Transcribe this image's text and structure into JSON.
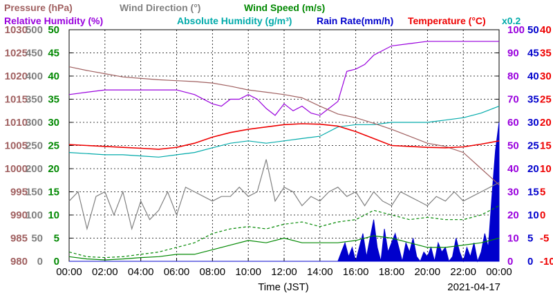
{
  "chart_data": {
    "type": "line",
    "date_label": "2021-04-17",
    "xlabel": "Time (JST)",
    "x_ticks": [
      "00:00",
      "02:00",
      "04:00",
      "06:00",
      "08:00",
      "10:00",
      "12:00",
      "14:00",
      "16:00",
      "18:00",
      "20:00",
      "22:00",
      "00:00"
    ],
    "x_range_hours": [
      0,
      24
    ],
    "grid": true,
    "legend_row1": [
      {
        "text": "Pressure (hPa)",
        "color": "#a06060"
      },
      {
        "text": "Wind Direction (°)",
        "color": "#808080"
      },
      {
        "text": "Wind Speed (m/s)",
        "color": "#008800"
      }
    ],
    "legend_row2": [
      {
        "text": "Relative Humidity (%)",
        "color": "#9900dd"
      },
      {
        "text": "Absolute Humidity (g/m³)",
        "color": "#00aaaa"
      },
      {
        "text": "Rain Rate(mm/h)",
        "color": "#0000cc"
      },
      {
        "text": "Temperature (°C)",
        "color": "#ee0000"
      }
    ],
    "rain_scale_note": "x0.2",
    "axes": {
      "pressure": {
        "ticks": [
          "980",
          "985",
          "990",
          "995",
          "1000",
          "1005",
          "1010",
          "1015",
          "1020",
          "1025",
          "1030"
        ],
        "range": [
          980,
          1030
        ],
        "color": "#a06060"
      },
      "wind_direction": {
        "ticks": [
          "0",
          "50",
          "100",
          "150",
          "200",
          "250",
          "300",
          "350",
          "400",
          "450",
          "500"
        ],
        "range": [
          0,
          500
        ],
        "color": "#808080"
      },
      "wind_speed": {
        "ticks": [
          "0",
          "5",
          "10",
          "15",
          "20",
          "25",
          "30",
          "35",
          "40",
          "45",
          "50"
        ],
        "range": [
          0,
          50
        ],
        "color": "#008800"
      },
      "humidity": {
        "ticks": [
          "0",
          "10",
          "20",
          "30",
          "40",
          "50",
          "60",
          "70",
          "80",
          "90",
          "100"
        ],
        "range": [
          0,
          100
        ],
        "color": "#9900dd"
      },
      "rain_rate": {
        "ticks": [
          "0",
          "5",
          "10",
          "15",
          "20",
          "25",
          "30",
          "35",
          "40",
          "45",
          "50"
        ],
        "range": [
          0,
          50
        ],
        "color": "#0000cc"
      },
      "temperature": {
        "ticks": [
          "-10",
          "-5",
          "0",
          "5",
          "10",
          "15",
          "20",
          "25",
          "30",
          "35",
          "40"
        ],
        "range": [
          -10,
          40
        ],
        "color": "#ee0000"
      }
    },
    "series": [
      {
        "name": "Pressure",
        "axis": "pressure",
        "color": "#a06060",
        "x": [
          0,
          1,
          2,
          3,
          4,
          5,
          6,
          7,
          8,
          9,
          10,
          11,
          12,
          13,
          14,
          15,
          16,
          17,
          18,
          19,
          20,
          21,
          22,
          23,
          24
        ],
        "y": [
          1022,
          1021.2,
          1020.5,
          1019.8,
          1019.5,
          1019.2,
          1019,
          1018.8,
          1018.5,
          1017.8,
          1017,
          1016.5,
          1016,
          1015.3,
          1013.5,
          1011.8,
          1011,
          1009.8,
          1008.5,
          1007,
          1005.5,
          1004.8,
          1003.5,
          1000,
          996.5
        ]
      },
      {
        "name": "Wind Direction",
        "axis": "wind_direction",
        "color": "#808080",
        "x": [
          0,
          0.5,
          1,
          1.5,
          2,
          2.5,
          3,
          3.5,
          4,
          4.5,
          5,
          5.5,
          6,
          6.5,
          7,
          7.5,
          8,
          8.5,
          9,
          9.5,
          10,
          10.5,
          11,
          11.5,
          12,
          12.5,
          13,
          13.5,
          14,
          14.5,
          15,
          15.5,
          16,
          16.5,
          17,
          17.5,
          18,
          18.5,
          19,
          19.5,
          20,
          20.5,
          21,
          21.5,
          22,
          22.5,
          23,
          23.5,
          24
        ],
        "y": [
          130,
          150,
          70,
          140,
          150,
          100,
          150,
          70,
          130,
          90,
          110,
          150,
          100,
          160,
          150,
          140,
          130,
          140,
          140,
          160,
          140,
          150,
          220,
          130,
          160,
          150,
          120,
          140,
          130,
          150,
          160,
          140,
          150,
          120,
          150,
          130,
          120,
          150,
          140,
          130,
          120,
          140,
          130,
          150,
          130,
          140,
          150,
          160,
          170
        ]
      },
      {
        "name": "Wind Speed",
        "axis": "wind_speed",
        "color": "#008800",
        "x": [
          0,
          1,
          2,
          3,
          4,
          5,
          6,
          7,
          8,
          9,
          10,
          11,
          12,
          13,
          14,
          15,
          16,
          17,
          18,
          19,
          20,
          21,
          22,
          23,
          24
        ],
        "y": [
          1,
          0.5,
          0.3,
          0.5,
          0.8,
          1,
          1.5,
          1.5,
          2.5,
          3.5,
          4.5,
          4,
          5,
          4,
          4,
          4,
          4.5,
          5.5,
          5,
          4,
          3,
          3,
          3.5,
          4,
          5
        ]
      },
      {
        "name": "Wind Speed Gust",
        "axis": "wind_speed",
        "color": "#008800",
        "dashed": true,
        "x": [
          0,
          1,
          2,
          3,
          4,
          5,
          6,
          7,
          8,
          9,
          10,
          11,
          12,
          13,
          14,
          15,
          16,
          17,
          18,
          19,
          20,
          21,
          22,
          23,
          24
        ],
        "y": [
          2,
          1,
          0.8,
          1,
          1.5,
          2,
          3,
          4,
          6,
          7,
          7.5,
          7,
          8,
          8.5,
          7.5,
          8.5,
          9,
          11,
          10,
          9,
          9.5,
          9,
          9,
          10,
          12
        ]
      },
      {
        "name": "Relative Humidity",
        "axis": "humidity",
        "color": "#9900dd",
        "x": [
          0,
          1,
          2,
          3,
          4,
          5,
          6,
          7,
          8,
          8.5,
          9,
          9.5,
          10,
          10.5,
          11,
          11.5,
          12,
          12.5,
          13,
          13.5,
          14,
          14.5,
          15,
          15.5,
          16,
          16.5,
          17,
          17.5,
          18,
          19,
          20,
          21,
          22,
          23,
          24
        ],
        "y": [
          72,
          73,
          74,
          74,
          74,
          74,
          74,
          72,
          68,
          67,
          70,
          70,
          72,
          70,
          66,
          63,
          68,
          65,
          67,
          64,
          63,
          66,
          69,
          82,
          83,
          85,
          89,
          91,
          93,
          94,
          95,
          95,
          95,
          95,
          95
        ]
      },
      {
        "name": "Absolute Humidity",
        "axis": "humidity",
        "color": "#00aaaa",
        "x": [
          0,
          1,
          2,
          3,
          4,
          5,
          6,
          7,
          8,
          9,
          10,
          11,
          12,
          13,
          14,
          15,
          16,
          17,
          18,
          19,
          20,
          21,
          22,
          23,
          24
        ],
        "y": [
          47,
          46.5,
          46,
          46,
          45.5,
          45,
          46,
          47,
          49,
          51,
          52,
          51,
          52,
          53,
          54,
          58,
          59,
          59,
          60,
          60,
          60,
          61,
          62,
          64,
          67
        ]
      },
      {
        "name": "Temperature",
        "axis": "temperature",
        "color": "#ee0000",
        "x": [
          0,
          1,
          2,
          3,
          4,
          5,
          6,
          7,
          8,
          9,
          10,
          11,
          12,
          13,
          14,
          15,
          16,
          17,
          18,
          19,
          20,
          21,
          22,
          23,
          24
        ],
        "y": [
          15.2,
          15,
          14.8,
          14.6,
          14.4,
          14.2,
          14.6,
          15.5,
          16.8,
          17.8,
          18.5,
          19,
          19.5,
          19.7,
          19.6,
          19.2,
          18,
          16.5,
          15,
          14.8,
          14.6,
          14.5,
          14.7,
          15.3,
          16
        ]
      },
      {
        "name": "Rain Rate",
        "axis": "rain_rate",
        "color": "#0000cc",
        "type": "area",
        "x": [
          0,
          15,
          15.2,
          15.4,
          15.6,
          15.8,
          16,
          16.2,
          16.4,
          16.6,
          16.8,
          17,
          17.2,
          17.4,
          17.6,
          17.8,
          18,
          18.2,
          18.4,
          18.6,
          18.8,
          19,
          19.2,
          19.4,
          19.6,
          19.8,
          20,
          20.2,
          20.4,
          20.6,
          20.8,
          21,
          21.2,
          21.4,
          21.6,
          21.8,
          22,
          22.2,
          22.4,
          22.6,
          22.8,
          23,
          23.2,
          23.4,
          23.6,
          23.8,
          24
        ],
        "y": [
          0,
          0,
          2,
          4,
          1,
          3,
          0,
          3,
          6,
          1,
          5,
          9,
          3,
          0,
          7,
          2,
          4,
          6,
          3,
          0,
          4,
          2,
          5,
          1,
          0,
          2,
          1,
          3,
          0,
          4,
          2,
          3,
          0,
          1,
          5,
          2,
          0,
          3,
          1,
          4,
          0,
          2,
          6,
          3,
          14,
          24,
          30
        ]
      }
    ]
  }
}
